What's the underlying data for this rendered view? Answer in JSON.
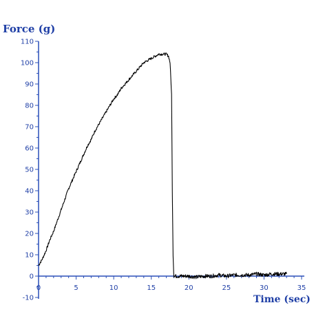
{
  "chart_data": {
    "type": "line",
    "title": "",
    "xlabel": "Time (sec)",
    "ylabel": "Force (g)",
    "xlim": [
      0,
      35
    ],
    "ylim": [
      -10,
      110
    ],
    "x_ticks": [
      "0",
      "5",
      "10",
      "15",
      "20",
      "25",
      "30",
      "35"
    ],
    "y_ticks": [
      "110",
      "100",
      "90",
      "80",
      "70",
      "60",
      "50",
      "40",
      "30",
      "20",
      "10",
      "0",
      "-10"
    ],
    "grid": false,
    "legend": "none",
    "colors": {
      "label": "#1f3fa6",
      "axis": "#2a4fb8",
      "line": "#000000"
    },
    "series": [
      {
        "x": [
          0,
          0.5,
          1,
          1.5,
          2,
          2.5,
          3,
          3.5,
          4,
          4.5,
          5,
          5.5,
          6,
          6.5,
          7,
          7.5,
          8,
          8.5,
          9,
          9.5,
          10,
          10.5,
          11,
          11.5,
          12,
          12.5,
          13,
          13.5,
          14,
          14.5,
          15,
          15.5,
          16,
          16.5,
          17,
          17.3,
          17.5,
          17.7,
          17.8,
          17.9,
          18,
          19,
          20,
          21,
          22,
          23,
          24,
          25,
          26,
          27,
          28,
          29,
          30,
          31,
          32,
          33
        ],
        "values": [
          5,
          8,
          12,
          17,
          21,
          26,
          31,
          36,
          41,
          45,
          49,
          53,
          57,
          61,
          64,
          68,
          71,
          74,
          77,
          80,
          83,
          85,
          88,
          90,
          92,
          94,
          96,
          98,
          100,
          101,
          102,
          103,
          104,
          104,
          104,
          103,
          100,
          85,
          40,
          10,
          0,
          0,
          0,
          -0.5,
          0,
          0,
          0.5,
          0,
          0.5,
          0.5,
          0.5,
          1,
          0.5,
          1,
          1,
          1
        ]
      }
    ]
  }
}
